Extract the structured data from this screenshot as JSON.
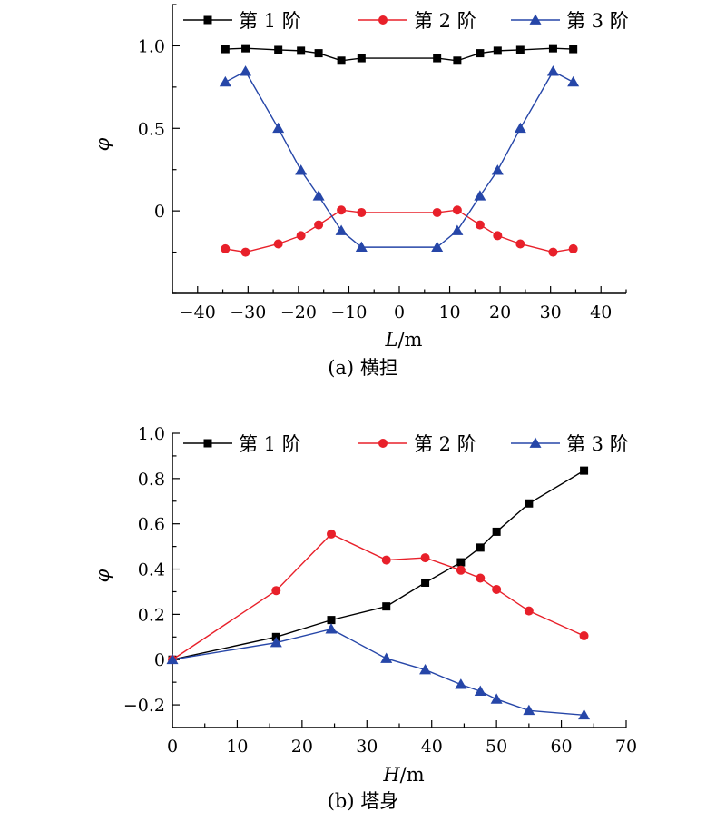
{
  "chart_data": [
    {
      "type": "line",
      "caption": "(a) 横担",
      "xlabel_var": "L",
      "xlabel_unit": "/m",
      "ylabel": "φ",
      "xlim": [
        -45,
        45
      ],
      "ylim": [
        -0.5,
        1.25
      ],
      "xticks": [
        -40,
        -30,
        -20,
        -10,
        0,
        10,
        20,
        30,
        40
      ],
      "xtick_labels": [
        "−40",
        "−30",
        "−20",
        "−10",
        "0",
        "10",
        "20",
        "30",
        "40"
      ],
      "yticks": [
        0,
        0.5,
        1.0
      ],
      "ytick_labels": [
        "0",
        "0.5",
        "1.0"
      ],
      "legend_position": "top",
      "grid": false,
      "series": [
        {
          "name": "第 1 阶",
          "color": "#000000",
          "marker": "square",
          "x": [
            -34.5,
            -30.5,
            -24,
            -19.5,
            -16,
            -11.5,
            -7.5,
            7.5,
            11.5,
            16,
            19.5,
            24,
            30.5,
            34.5
          ],
          "y": [
            0.98,
            0.985,
            0.975,
            0.97,
            0.955,
            0.91,
            0.925,
            0.925,
            0.91,
            0.955,
            0.97,
            0.975,
            0.985,
            0.98
          ]
        },
        {
          "name": "第 2 阶",
          "color": "#e8202a",
          "marker": "circle",
          "x": [
            -34.5,
            -30.5,
            -24,
            -19.5,
            -16,
            -11.5,
            -7.5,
            7.5,
            11.5,
            16,
            19.5,
            24,
            30.5,
            34.5
          ],
          "y": [
            -0.23,
            -0.25,
            -0.2,
            -0.15,
            -0.085,
            0.005,
            -0.01,
            -0.01,
            0.005,
            -0.085,
            -0.15,
            -0.2,
            -0.25,
            -0.23
          ]
        },
        {
          "name": "第 3 阶",
          "color": "#2646a8",
          "marker": "triangle",
          "x": [
            -34.5,
            -30.5,
            -24,
            -19.5,
            -16,
            -11.5,
            -7.5,
            7.5,
            11.5,
            16,
            19.5,
            24,
            30.5,
            34.5
          ],
          "y": [
            0.78,
            0.845,
            0.5,
            0.245,
            0.09,
            -0.12,
            -0.22,
            -0.22,
            -0.12,
            0.09,
            0.245,
            0.5,
            0.845,
            0.78
          ]
        }
      ]
    },
    {
      "type": "line",
      "caption": "(b) 塔身",
      "xlabel_var": "H",
      "xlabel_unit": "/m",
      "ylabel": "φ",
      "xlim": [
        0,
        70
      ],
      "ylim": [
        -0.3,
        1.0
      ],
      "xticks": [
        0,
        10,
        20,
        30,
        40,
        50,
        60,
        70
      ],
      "xtick_labels": [
        "0",
        "10",
        "20",
        "30",
        "40",
        "50",
        "60",
        "70"
      ],
      "yticks": [
        -0.2,
        0,
        0.2,
        0.4,
        0.6,
        0.8,
        1.0
      ],
      "ytick_labels": [
        "−0.2",
        "0",
        "0.2",
        "0.4",
        "0.6",
        "0.8",
        "1.0"
      ],
      "legend_position": "top",
      "grid": false,
      "series": [
        {
          "name": "第 1 阶",
          "color": "#000000",
          "marker": "square",
          "x": [
            0,
            16,
            24.5,
            33,
            39,
            44.5,
            47.5,
            50,
            55,
            63.5
          ],
          "y": [
            0,
            0.1,
            0.175,
            0.235,
            0.34,
            0.43,
            0.495,
            0.565,
            0.69,
            0.835
          ]
        },
        {
          "name": "第 2 阶",
          "color": "#e8202a",
          "marker": "circle",
          "x": [
            0,
            16,
            24.5,
            33,
            39,
            44.5,
            47.5,
            50,
            55,
            63.5
          ],
          "y": [
            0,
            0.305,
            0.555,
            0.44,
            0.45,
            0.395,
            0.36,
            0.31,
            0.215,
            0.105
          ]
        },
        {
          "name": "第 3 阶",
          "color": "#2646a8",
          "marker": "triangle",
          "x": [
            0,
            16,
            24.5,
            33,
            39,
            44.5,
            47.5,
            50,
            55,
            63.5
          ],
          "y": [
            0,
            0.075,
            0.135,
            0.005,
            -0.045,
            -0.11,
            -0.14,
            -0.175,
            -0.225,
            -0.245
          ]
        }
      ]
    }
  ]
}
